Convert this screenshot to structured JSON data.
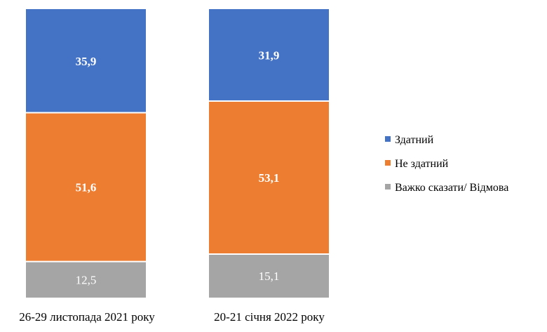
{
  "chart_data": {
    "type": "stacked_bar_100",
    "title": "",
    "xlabel": "",
    "ylabel": "",
    "ylim": [
      0,
      100
    ],
    "grid": false,
    "legend_position": "right",
    "categories": [
      "26-29 листопада 2021 року",
      "20-21 січня 2022 року"
    ],
    "series": [
      {
        "name": "Здатний",
        "color": "#4472C4",
        "values": [
          35.9,
          31.9
        ],
        "labels": [
          "35,9",
          "31,9"
        ],
        "label_color": "#ffffff",
        "label_bold": true
      },
      {
        "name": "Не здатний",
        "color": "#ED7D31",
        "values": [
          51.6,
          53.1
        ],
        "labels": [
          "51,6",
          "53,1"
        ],
        "label_color": "#ffffff",
        "label_bold": true
      },
      {
        "name": "Важко сказати/ Відмова",
        "color": "#A5A5A5",
        "values": [
          12.5,
          15.1
        ],
        "labels": [
          "12,5",
          "15,1"
        ],
        "label_color": "#ffffff",
        "label_bold": false
      }
    ]
  }
}
